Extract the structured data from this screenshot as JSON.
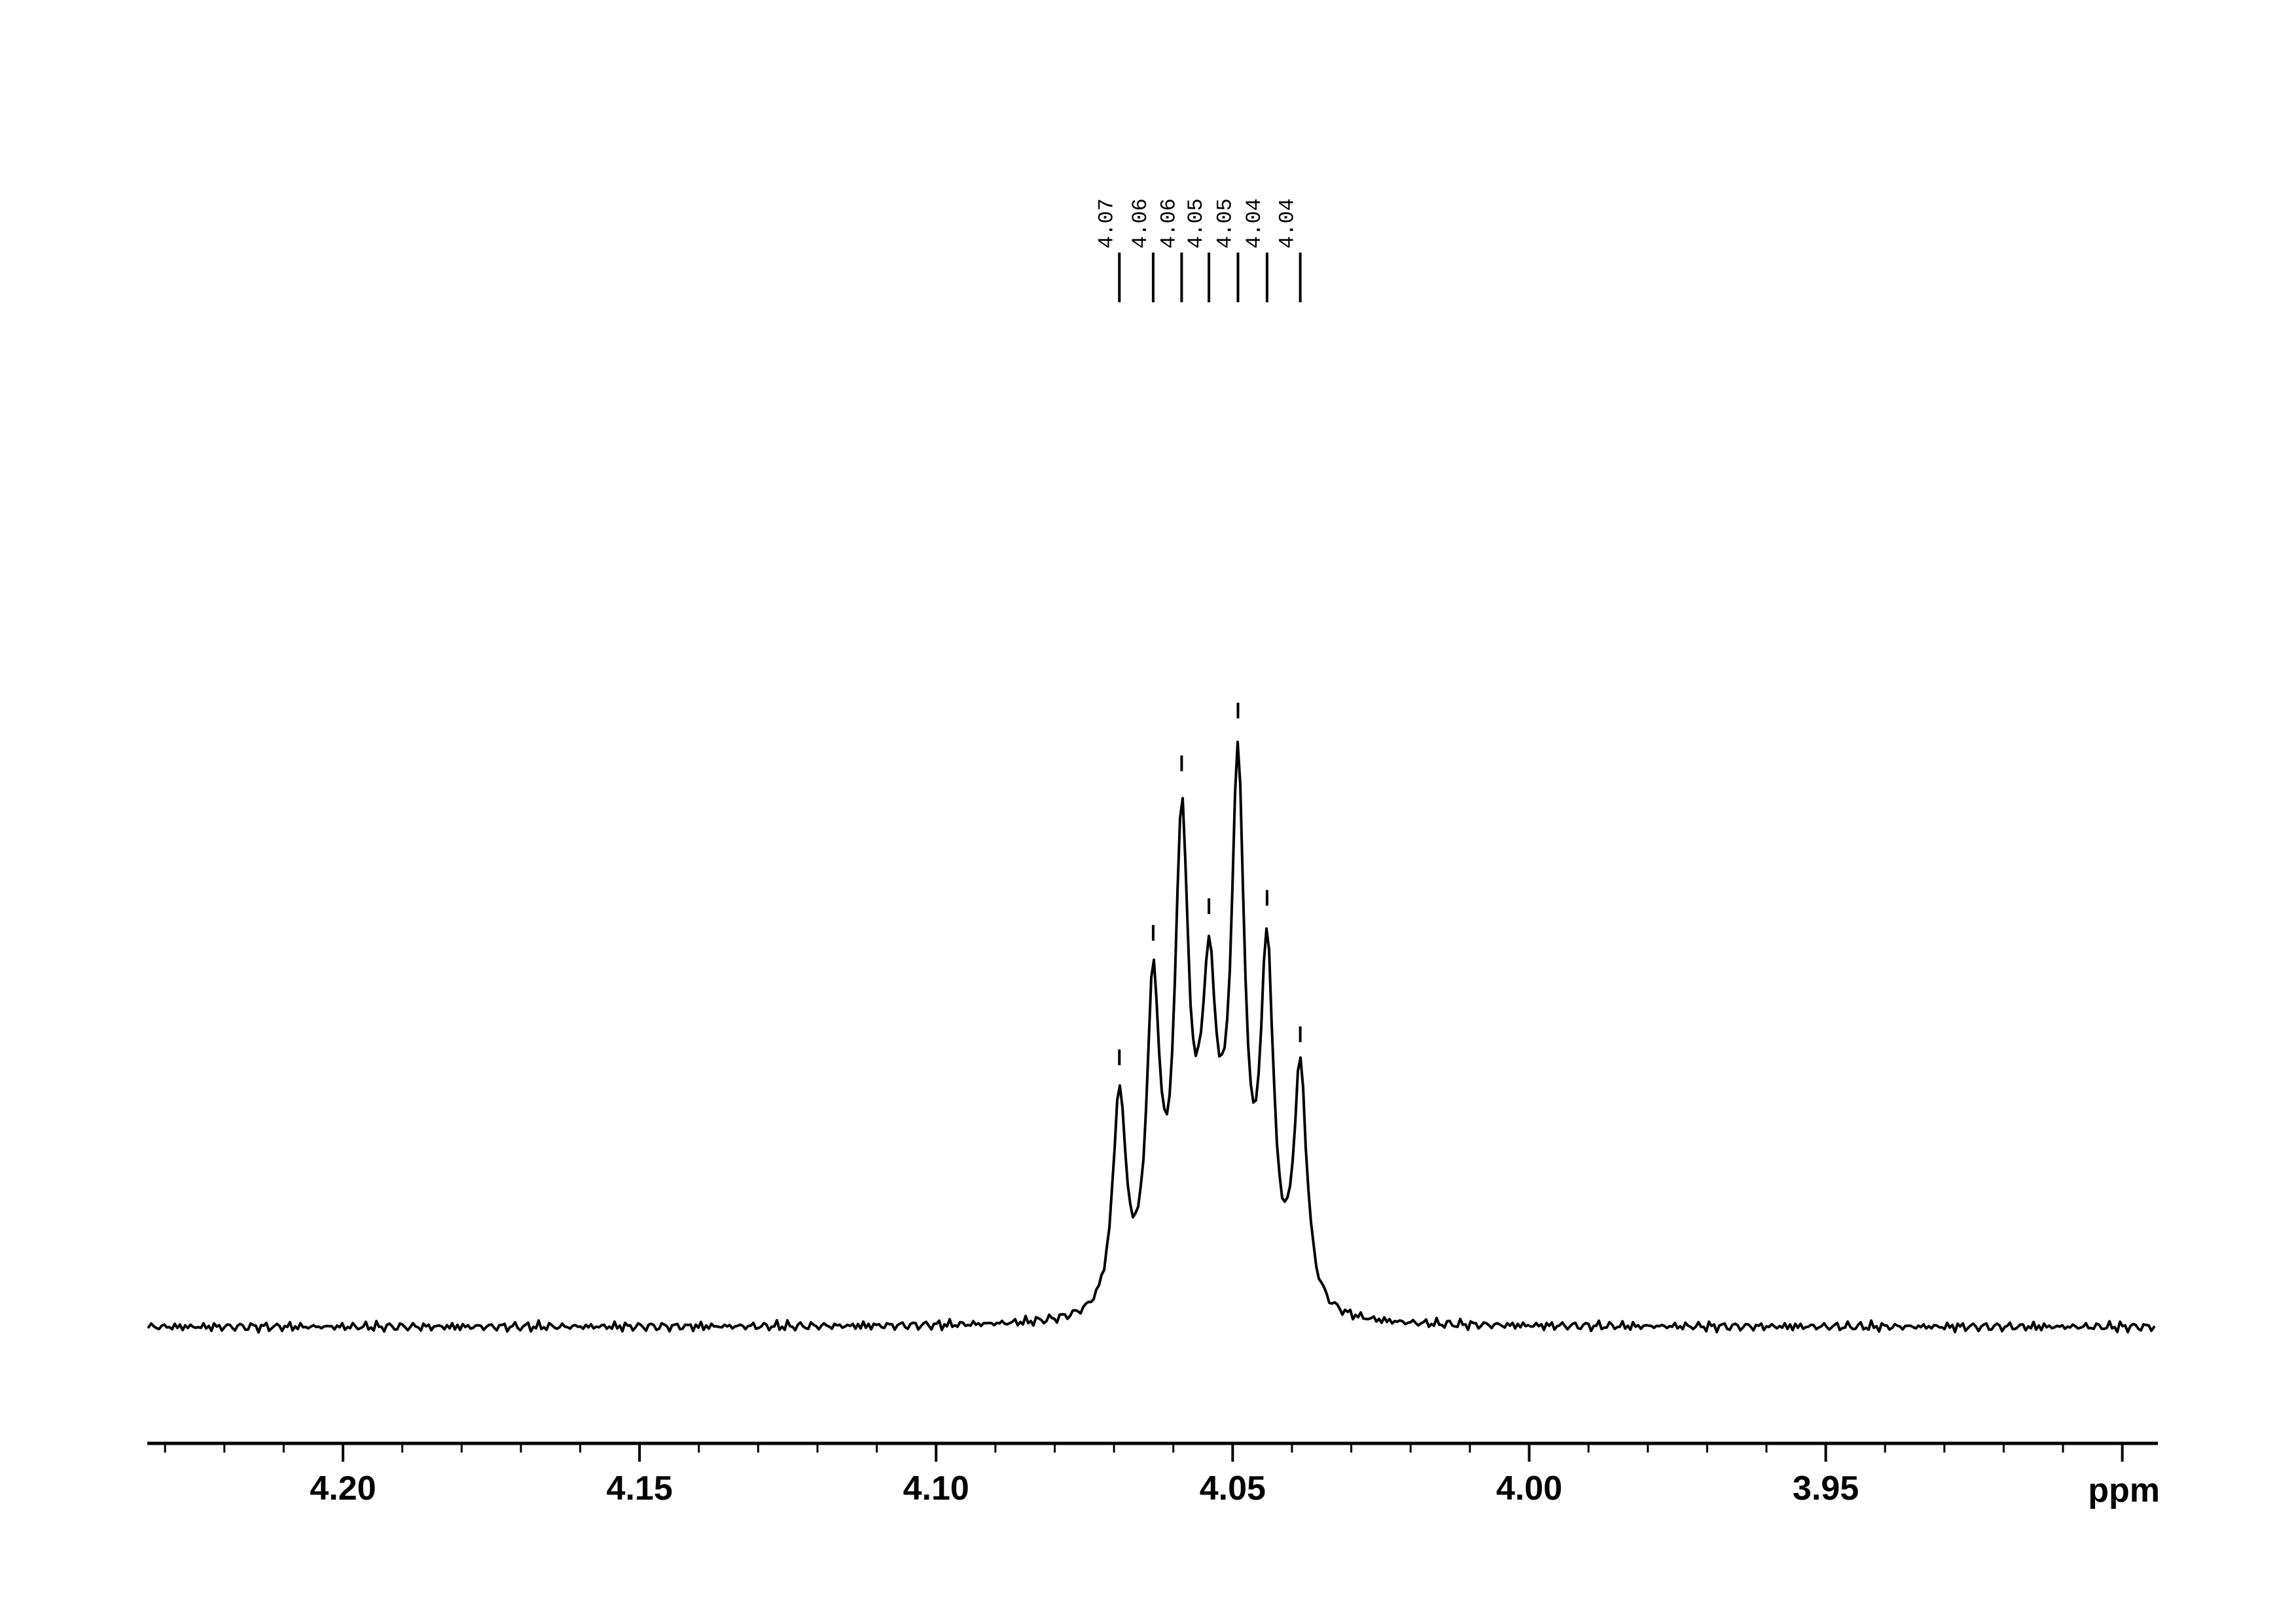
{
  "figure": {
    "background_color": "#ffffff",
    "line_color": "#000000"
  },
  "peak_label_row": {
    "labels": [
      "4.07",
      "4.06",
      "4.06",
      "4.05",
      "4.05",
      "4.04",
      "4.04"
    ]
  },
  "axis": {
    "unit_label": "ppm",
    "major_ticks": [
      {
        "ppm": 4.2,
        "label": "4.20"
      },
      {
        "ppm": 4.15,
        "label": "4.15"
      },
      {
        "ppm": 4.1,
        "label": "4.10"
      },
      {
        "ppm": 4.05,
        "label": "4.05"
      },
      {
        "ppm": 4.0,
        "label": "4.00"
      },
      {
        "ppm": 3.95,
        "label": "3.95"
      },
      {
        "ppm": 3.9,
        "label": ""
      }
    ],
    "minor_tick_step_ppm": 0.01,
    "axis_range_ppm": [
      4.233,
      3.894
    ]
  },
  "chart_data": {
    "type": "line",
    "xlabel": "ppm",
    "x_axis_reversed": true,
    "x_range_ppm": [
      4.233,
      3.894
    ],
    "ylim": [
      0,
      1.0
    ],
    "grid": false,
    "legend": false,
    "description": "1H NMR multiplet expansion with seven picked peaks",
    "peaks": [
      {
        "ppm": 4.0691,
        "label": "4.07",
        "rel_intensity": 0.415
      },
      {
        "ppm": 4.0634,
        "label": "4.06",
        "rel_intensity": 0.625
      },
      {
        "ppm": 4.0586,
        "label": "4.06",
        "rel_intensity": 0.911
      },
      {
        "ppm": 4.054,
        "label": "4.05",
        "rel_intensity": 0.67
      },
      {
        "ppm": 4.0491,
        "label": "4.05",
        "rel_intensity": 1.0
      },
      {
        "ppm": 4.0442,
        "label": "4.04",
        "rel_intensity": 0.684
      },
      {
        "ppm": 4.0386,
        "label": "4.04",
        "rel_intensity": 0.454
      }
    ],
    "noise_rel_amplitude": 0.009,
    "lineshape_model": {
      "hwhm_ppm": 0.00132,
      "lorentzian_components": [
        {
          "ppm": 4.0691,
          "rel_amplitude": 0.3642
        },
        {
          "ppm": 4.0634,
          "rel_amplitude": 0.5199
        },
        {
          "ppm": 4.0586,
          "rel_amplitude": 0.7185
        },
        {
          "ppm": 4.054,
          "rel_amplitude": 0.3576
        },
        {
          "ppm": 4.0491,
          "rel_amplitude": 0.809
        },
        {
          "ppm": 4.0442,
          "rel_amplitude": 0.5728
        },
        {
          "ppm": 4.0386,
          "rel_amplitude": 0.4029
        }
      ],
      "broad_component": {
        "ppm": 4.0539,
        "rel_amplitude": 0.1656,
        "sigma_ppm": 0.00605
      }
    }
  }
}
